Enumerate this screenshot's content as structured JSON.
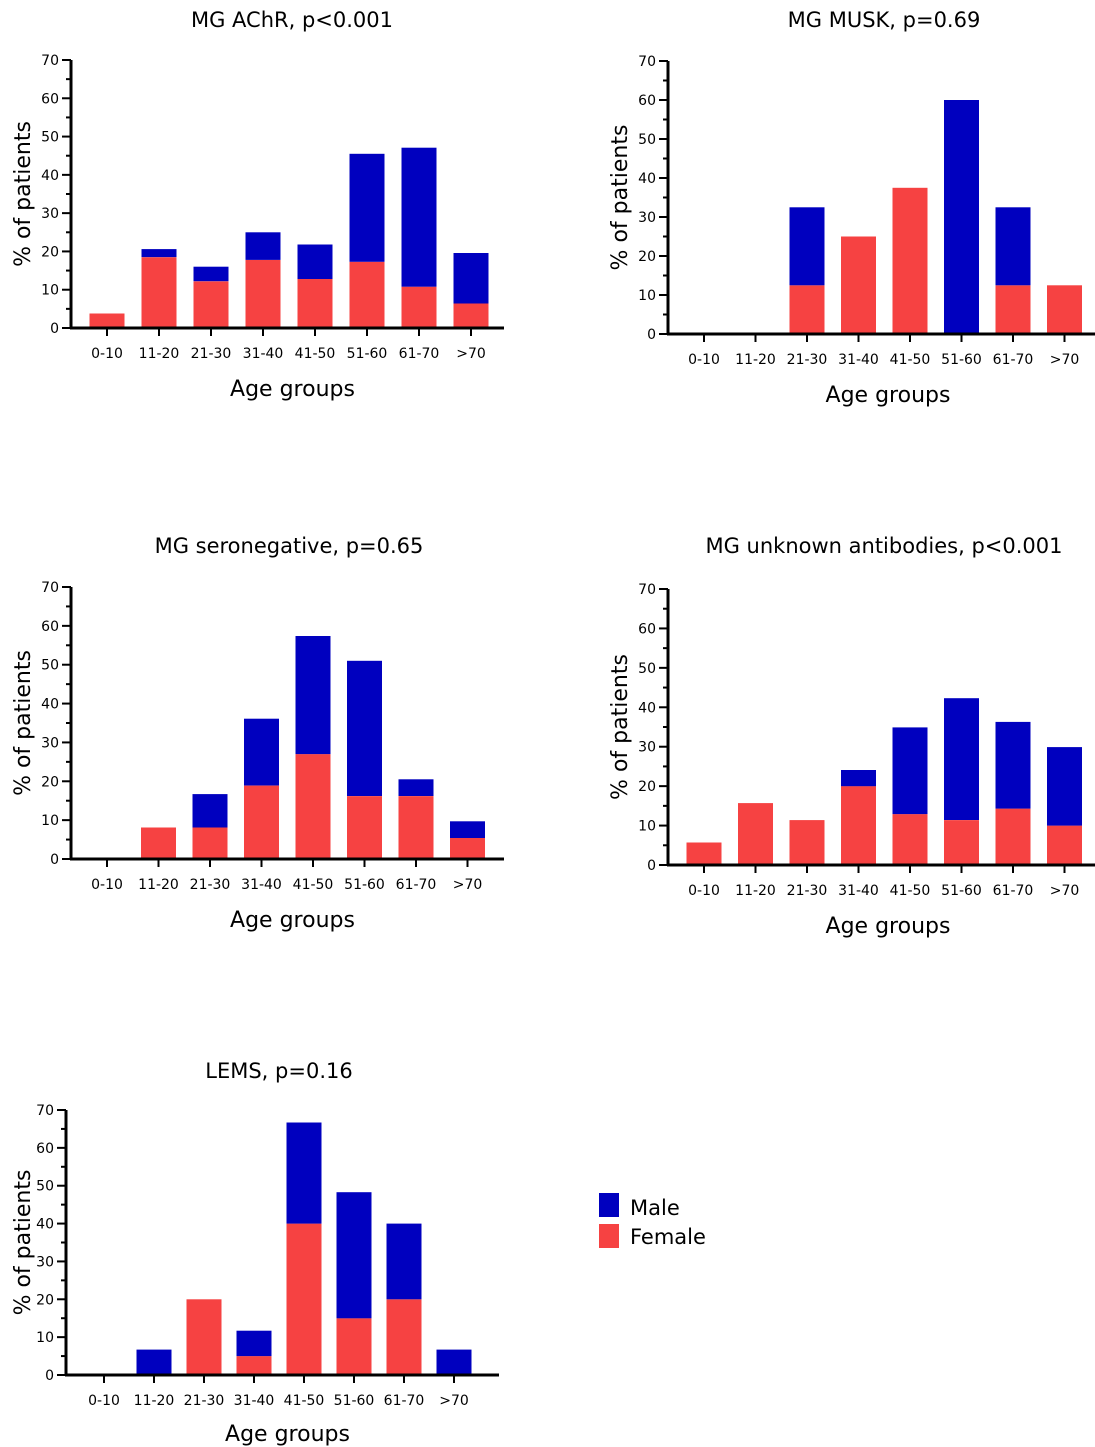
{
  "chart_data": [
    {
      "type": "bar",
      "stacked": true,
      "title": "MG AChR, p<0.001",
      "xlabel": "Age groups",
      "ylabel": "% of patients",
      "ylim": [
        0,
        70
      ],
      "yticks": [
        0,
        10,
        20,
        30,
        40,
        50,
        60,
        70
      ],
      "categories": [
        "0-10",
        "11-20",
        "21-30",
        "31-40",
        "41-50",
        "51-60",
        "61-70",
        ">70"
      ],
      "series": [
        {
          "name": "Female",
          "color": "#f64242",
          "values": [
            3.8,
            18.5,
            12.2,
            17.8,
            12.8,
            17.3,
            10.8,
            6.4
          ]
        },
        {
          "name": "Male",
          "color": "#0000bf",
          "values": [
            0,
            2.1,
            3.8,
            7.2,
            9.0,
            28.2,
            36.3,
            13.2
          ]
        }
      ]
    },
    {
      "type": "bar",
      "stacked": true,
      "title": "MG MUSK, p=0.69",
      "xlabel": "Age groups",
      "ylabel": "% of patients",
      "ylim": [
        0,
        70
      ],
      "yticks": [
        0,
        10,
        20,
        30,
        40,
        50,
        60,
        70
      ],
      "categories": [
        "0-10",
        "11-20",
        "21-30",
        "31-40",
        "41-50",
        "51-60",
        "61-70",
        ">70"
      ],
      "series": [
        {
          "name": "Female",
          "color": "#f64242",
          "values": [
            0,
            0,
            12.5,
            25.0,
            37.5,
            0,
            12.5,
            12.5
          ]
        },
        {
          "name": "Male",
          "color": "#0000bf",
          "values": [
            0,
            0,
            20.0,
            0,
            0,
            60.0,
            20.0,
            0
          ]
        }
      ]
    },
    {
      "type": "bar",
      "stacked": true,
      "title": "MG seronegative, p=0.65",
      "xlabel": "Age groups",
      "ylabel": "% of patients",
      "ylim": [
        0,
        70
      ],
      "yticks": [
        0,
        10,
        20,
        30,
        40,
        50,
        60,
        70
      ],
      "categories": [
        "0-10",
        "11-20",
        "21-30",
        "31-40",
        "41-50",
        "51-60",
        "61-70",
        ">70"
      ],
      "series": [
        {
          "name": "Female",
          "color": "#f64242",
          "values": [
            0,
            8.1,
            8.1,
            18.9,
            27.0,
            16.2,
            16.2,
            5.4
          ]
        },
        {
          "name": "Male",
          "color": "#0000bf",
          "values": [
            0,
            0,
            8.6,
            17.2,
            30.4,
            34.8,
            4.3,
            4.3
          ]
        }
      ]
    },
    {
      "type": "bar",
      "stacked": true,
      "title": "MG unknown antibodies, p<0.001",
      "xlabel": "Age groups",
      "ylabel": "% of patients",
      "ylim": [
        0,
        70
      ],
      "yticks": [
        0,
        10,
        20,
        30,
        40,
        50,
        60,
        70
      ],
      "categories": [
        "0-10",
        "11-20",
        "21-30",
        "31-40",
        "41-50",
        "51-60",
        "61-70",
        ">70"
      ],
      "series": [
        {
          "name": "Female",
          "color": "#f64242",
          "values": [
            5.7,
            15.7,
            11.4,
            20.0,
            12.9,
            11.4,
            14.3,
            10.0
          ]
        },
        {
          "name": "Male",
          "color": "#0000bf",
          "values": [
            0,
            0,
            0,
            4.1,
            22.0,
            30.9,
            22.0,
            19.9
          ]
        }
      ]
    },
    {
      "type": "bar",
      "stacked": true,
      "title": "LEMS, p=0.16",
      "xlabel": "Age groups",
      "ylabel": "% of patients",
      "ylim": [
        0,
        70
      ],
      "yticks": [
        0,
        10,
        20,
        30,
        40,
        50,
        60,
        70
      ],
      "categories": [
        "0-10",
        "11-20",
        "21-30",
        "31-40",
        "41-50",
        "51-60",
        "61-70",
        ">70"
      ],
      "series": [
        {
          "name": "Female",
          "color": "#f64242",
          "values": [
            0,
            0,
            20.0,
            5.0,
            40.0,
            15.0,
            20.0,
            0
          ]
        },
        {
          "name": "Male",
          "color": "#0000bf",
          "values": [
            0,
            6.7,
            0,
            6.7,
            26.7,
            33.3,
            20.0,
            6.7
          ]
        }
      ]
    }
  ],
  "legend": {
    "items": [
      {
        "label": "Male",
        "color": "#0000bf"
      },
      {
        "label": "Female",
        "color": "#f64242"
      }
    ]
  }
}
